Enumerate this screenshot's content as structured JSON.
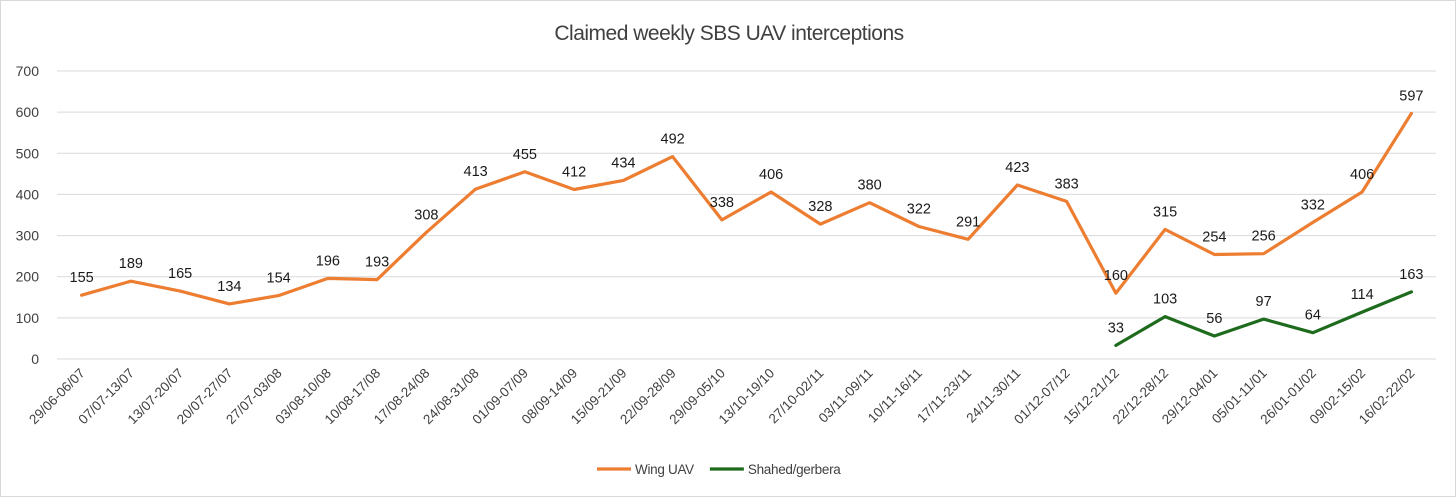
{
  "chart_data": {
    "type": "line",
    "title": "Claimed weekly SBS UAV interceptions",
    "xlabel": "",
    "ylabel": "",
    "ylim": [
      0,
      700
    ],
    "yticks": [
      0,
      100,
      200,
      300,
      400,
      500,
      600,
      700
    ],
    "grid": true,
    "legend_position": "bottom",
    "categories": [
      "29/06-06/07",
      "07/07-13/07",
      "13/07-20/07",
      "20/07-27/07",
      "27/07-03/08",
      "03/08-10/08",
      "10/08-17/08",
      "17/08-24/08",
      "24/08-31/08",
      "01/09-07/09",
      "08/09-14/09",
      "15/09-21/09",
      "22/09-28/09",
      "29/09-05/10",
      "13/10-19/10",
      "27/10-02/11",
      "03/11-09/11",
      "10/11-16/11",
      "17/11-23/11",
      "24/11-30/11",
      "01/12-07/12",
      "15/12-21/12",
      "22/12-28/12",
      "29/12-04/01",
      "05/01-11/01",
      "26/01-01/02",
      "09/02-15/02",
      "16/02-22/02"
    ],
    "series": [
      {
        "name": "Wing UAV",
        "color": "#ed7d31",
        "values": [
          155,
          189,
          165,
          134,
          154,
          196,
          193,
          308,
          413,
          455,
          412,
          434,
          492,
          338,
          406,
          328,
          380,
          322,
          291,
          423,
          383,
          160,
          315,
          254,
          256,
          332,
          406,
          597
        ]
      },
      {
        "name": "Shahed/gerbera",
        "color": "#1e6b1e",
        "values": [
          null,
          null,
          null,
          null,
          null,
          null,
          null,
          null,
          null,
          null,
          null,
          null,
          null,
          null,
          null,
          null,
          null,
          null,
          null,
          null,
          null,
          33,
          103,
          56,
          97,
          64,
          114,
          163
        ]
      }
    ]
  }
}
